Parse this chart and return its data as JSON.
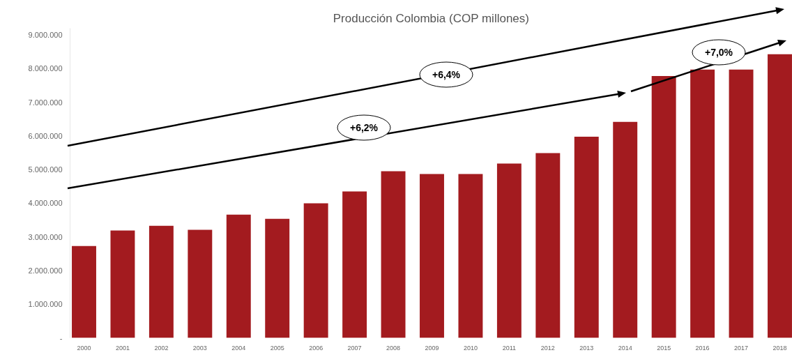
{
  "chart_data": {
    "type": "bar",
    "title": "Producción Colombia (COP millones)",
    "categories": [
      "2000",
      "2001",
      "2002",
      "2003",
      "2004",
      "2005",
      "2006",
      "2007",
      "2008",
      "2009",
      "2010",
      "2011",
      "2012",
      "2013",
      "2014",
      "2015",
      "2016",
      "2017",
      "2018"
    ],
    "values": [
      2730000,
      3190000,
      3330000,
      3210000,
      3660000,
      3540000,
      4000000,
      4350000,
      4950000,
      4870000,
      4870000,
      5180000,
      5490000,
      5980000,
      6420000,
      7780000,
      7970000,
      7970000,
      8430000
    ],
    "color": "#a31b1f",
    "ylim": [
      0,
      9200000
    ],
    "yticks": [
      {
        "value": 0,
        "label": "-"
      },
      {
        "value": 1000000,
        "label": "1.000.000"
      },
      {
        "value": 2000000,
        "label": "2.000.000"
      },
      {
        "value": 3000000,
        "label": "3.000.000"
      },
      {
        "value": 4000000,
        "label": "4.000.000"
      },
      {
        "value": 5000000,
        "label": "5.000.000"
      },
      {
        "value": 6000000,
        "label": "6.000.000"
      },
      {
        "value": 7000000,
        "label": "7.000.000"
      },
      {
        "value": 8000000,
        "label": "8.000.000"
      },
      {
        "value": 9000000,
        "label": "9.000.000"
      }
    ],
    "annotations": [
      "+6,4%",
      "+6,2%",
      "+7,0%"
    ],
    "grid": false
  }
}
